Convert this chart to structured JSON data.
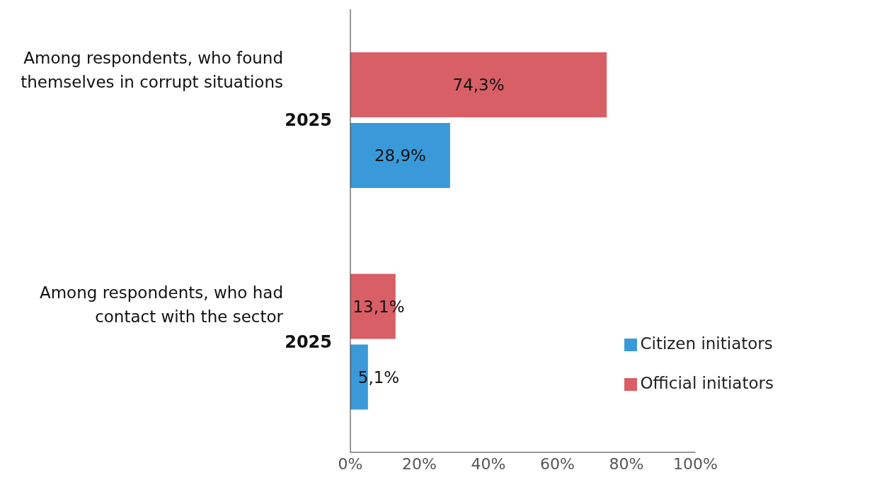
{
  "chart_data": {
    "type": "bar",
    "orientation": "horizontal",
    "categories": [
      "2025",
      "2025"
    ],
    "series": [
      {
        "name": "Official initiators",
        "color": "#d95f66",
        "values": [
          74.3,
          13.1
        ],
        "value_labels": [
          "74,3%",
          "13,1%"
        ]
      },
      {
        "name": "Citizen initiators",
        "color": "#3a9ad9",
        "values": [
          28.9,
          5.1
        ],
        "value_labels": [
          "28,9%",
          "5,1%"
        ]
      }
    ],
    "xlim": [
      0,
      100
    ],
    "xticks": [
      {
        "value": 0,
        "label": "0%"
      },
      {
        "value": 20,
        "label": "20%"
      },
      {
        "value": 40,
        "label": "40%"
      },
      {
        "value": 60,
        "label": "60%"
      },
      {
        "value": 80,
        "label": "80%"
      },
      {
        "value": 100,
        "label": "100%"
      }
    ],
    "annotations": [
      "Among respondents, who found themselves in corrupt situations",
      "Among respondents, who had contact with the sector"
    ],
    "grid": false,
    "legend": "bottom right"
  }
}
